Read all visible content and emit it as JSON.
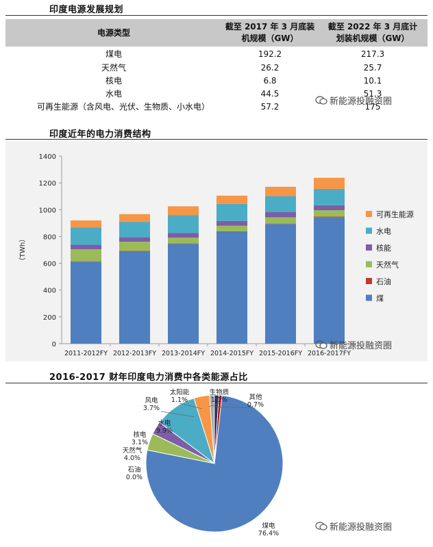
{
  "table_section": {
    "title": "印度电源发展规划",
    "headers": [
      "电源类型",
      "截至 2017 年 3 月底装机规模（GW）",
      "截至 2022 年 3 月底计划装机规模（GW）"
    ],
    "headers_lines": [
      [
        "电源类型"
      ],
      [
        "截至 2017 年 3 月底装",
        "机规模（GW）"
      ],
      [
        "截至 2022 年 3 月底计",
        "划装机规模（GW）"
      ]
    ],
    "rows": [
      {
        "type": "煤电",
        "cap_2017": "192.2",
        "cap_2022": "217.3"
      },
      {
        "type": "天然气",
        "cap_2017": "26.2",
        "cap_2022": "25.7"
      },
      {
        "type": "核电",
        "cap_2017": "6.8",
        "cap_2022": "10.1"
      },
      {
        "type": "水电",
        "cap_2017": "44.5",
        "cap_2022": "51.3"
      },
      {
        "type": "可再生能源（含风电、光伏、生物质、小水电）",
        "cap_2017": "57.2",
        "cap_2022": "175"
      }
    ]
  },
  "watermark": "新能源投融资圈",
  "colors": {
    "coal": "#4f7fbf",
    "oil": "#c0392b",
    "gas": "#9bbb59",
    "nuclear": "#7b5ea7",
    "hydro": "#4bacc6",
    "renewable": "#f79646",
    "header_bg": "#c8c8c8",
    "chart_bg": "#f2f2f2"
  },
  "chart_data": [
    {
      "type": "bar",
      "stacked": true,
      "title": "印度近年的电力消费结构",
      "ylabel": "（TWh）",
      "ylim": [
        0,
        1400
      ],
      "yticks": [
        0,
        200,
        400,
        600,
        800,
        1000,
        1200,
        1400
      ],
      "grid": false,
      "legend_position": "right",
      "categories": [
        "2011-2012FY",
        "2012-2013FY",
        "2013-2014FY",
        "2014-2015FY",
        "2015-2016FY",
        "2016-2017FY"
      ],
      "series": [
        {
          "name": "煤",
          "color_key": "coal",
          "values": [
            612,
            690,
            745,
            835,
            893,
            945
          ]
        },
        {
          "name": "石油",
          "color_key": "oil",
          "values": [
            3,
            3,
            3,
            3,
            3,
            3
          ]
        },
        {
          "name": "天然气",
          "color_key": "gas",
          "values": [
            90,
            68,
            43,
            42,
            47,
            48
          ]
        },
        {
          "name": "核能",
          "color_key": "nuclear",
          "values": [
            33,
            33,
            34,
            36,
            38,
            37
          ]
        },
        {
          "name": "水电",
          "color_key": "hydro",
          "values": [
            130,
            115,
            135,
            127,
            120,
            122
          ]
        },
        {
          "name": "可再生能源",
          "color_key": "renewable",
          "values": [
            52,
            58,
            65,
            62,
            70,
            83
          ]
        }
      ],
      "legend_order": [
        "可再生能源",
        "水电",
        "核能",
        "天然气",
        "石油",
        "煤"
      ]
    },
    {
      "type": "pie",
      "title": "2016-2017 财年印度电力消费中各类能源占比",
      "slices": [
        {
          "label": "煤电",
          "value": 76.4,
          "display": "76.4%",
          "color_key": "coal"
        },
        {
          "label": "石油",
          "value": 0.0,
          "display": "0.0%",
          "color_key": "oil"
        },
        {
          "label": "天然气",
          "value": 4.0,
          "display": "4.0%",
          "color_key": "gas"
        },
        {
          "label": "核电",
          "value": 3.1,
          "display": "3.1%",
          "color_key": "nuclear"
        },
        {
          "label": "水电",
          "value": 9.9,
          "display": "9.9%",
          "color_key": "hydro"
        },
        {
          "label": "风电",
          "value": 3.7,
          "display": "3.7%",
          "color": "#f79646"
        },
        {
          "label": "太阳能",
          "value": 1.1,
          "display": "1.1%",
          "color": "#a6a6a6"
        },
        {
          "label": "生物质",
          "value": 1.1,
          "display": "1.1%",
          "color": "#1f3864"
        },
        {
          "label": "其他",
          "value": 0.7,
          "display": "0.7%",
          "color": "#c00000"
        }
      ]
    }
  ]
}
